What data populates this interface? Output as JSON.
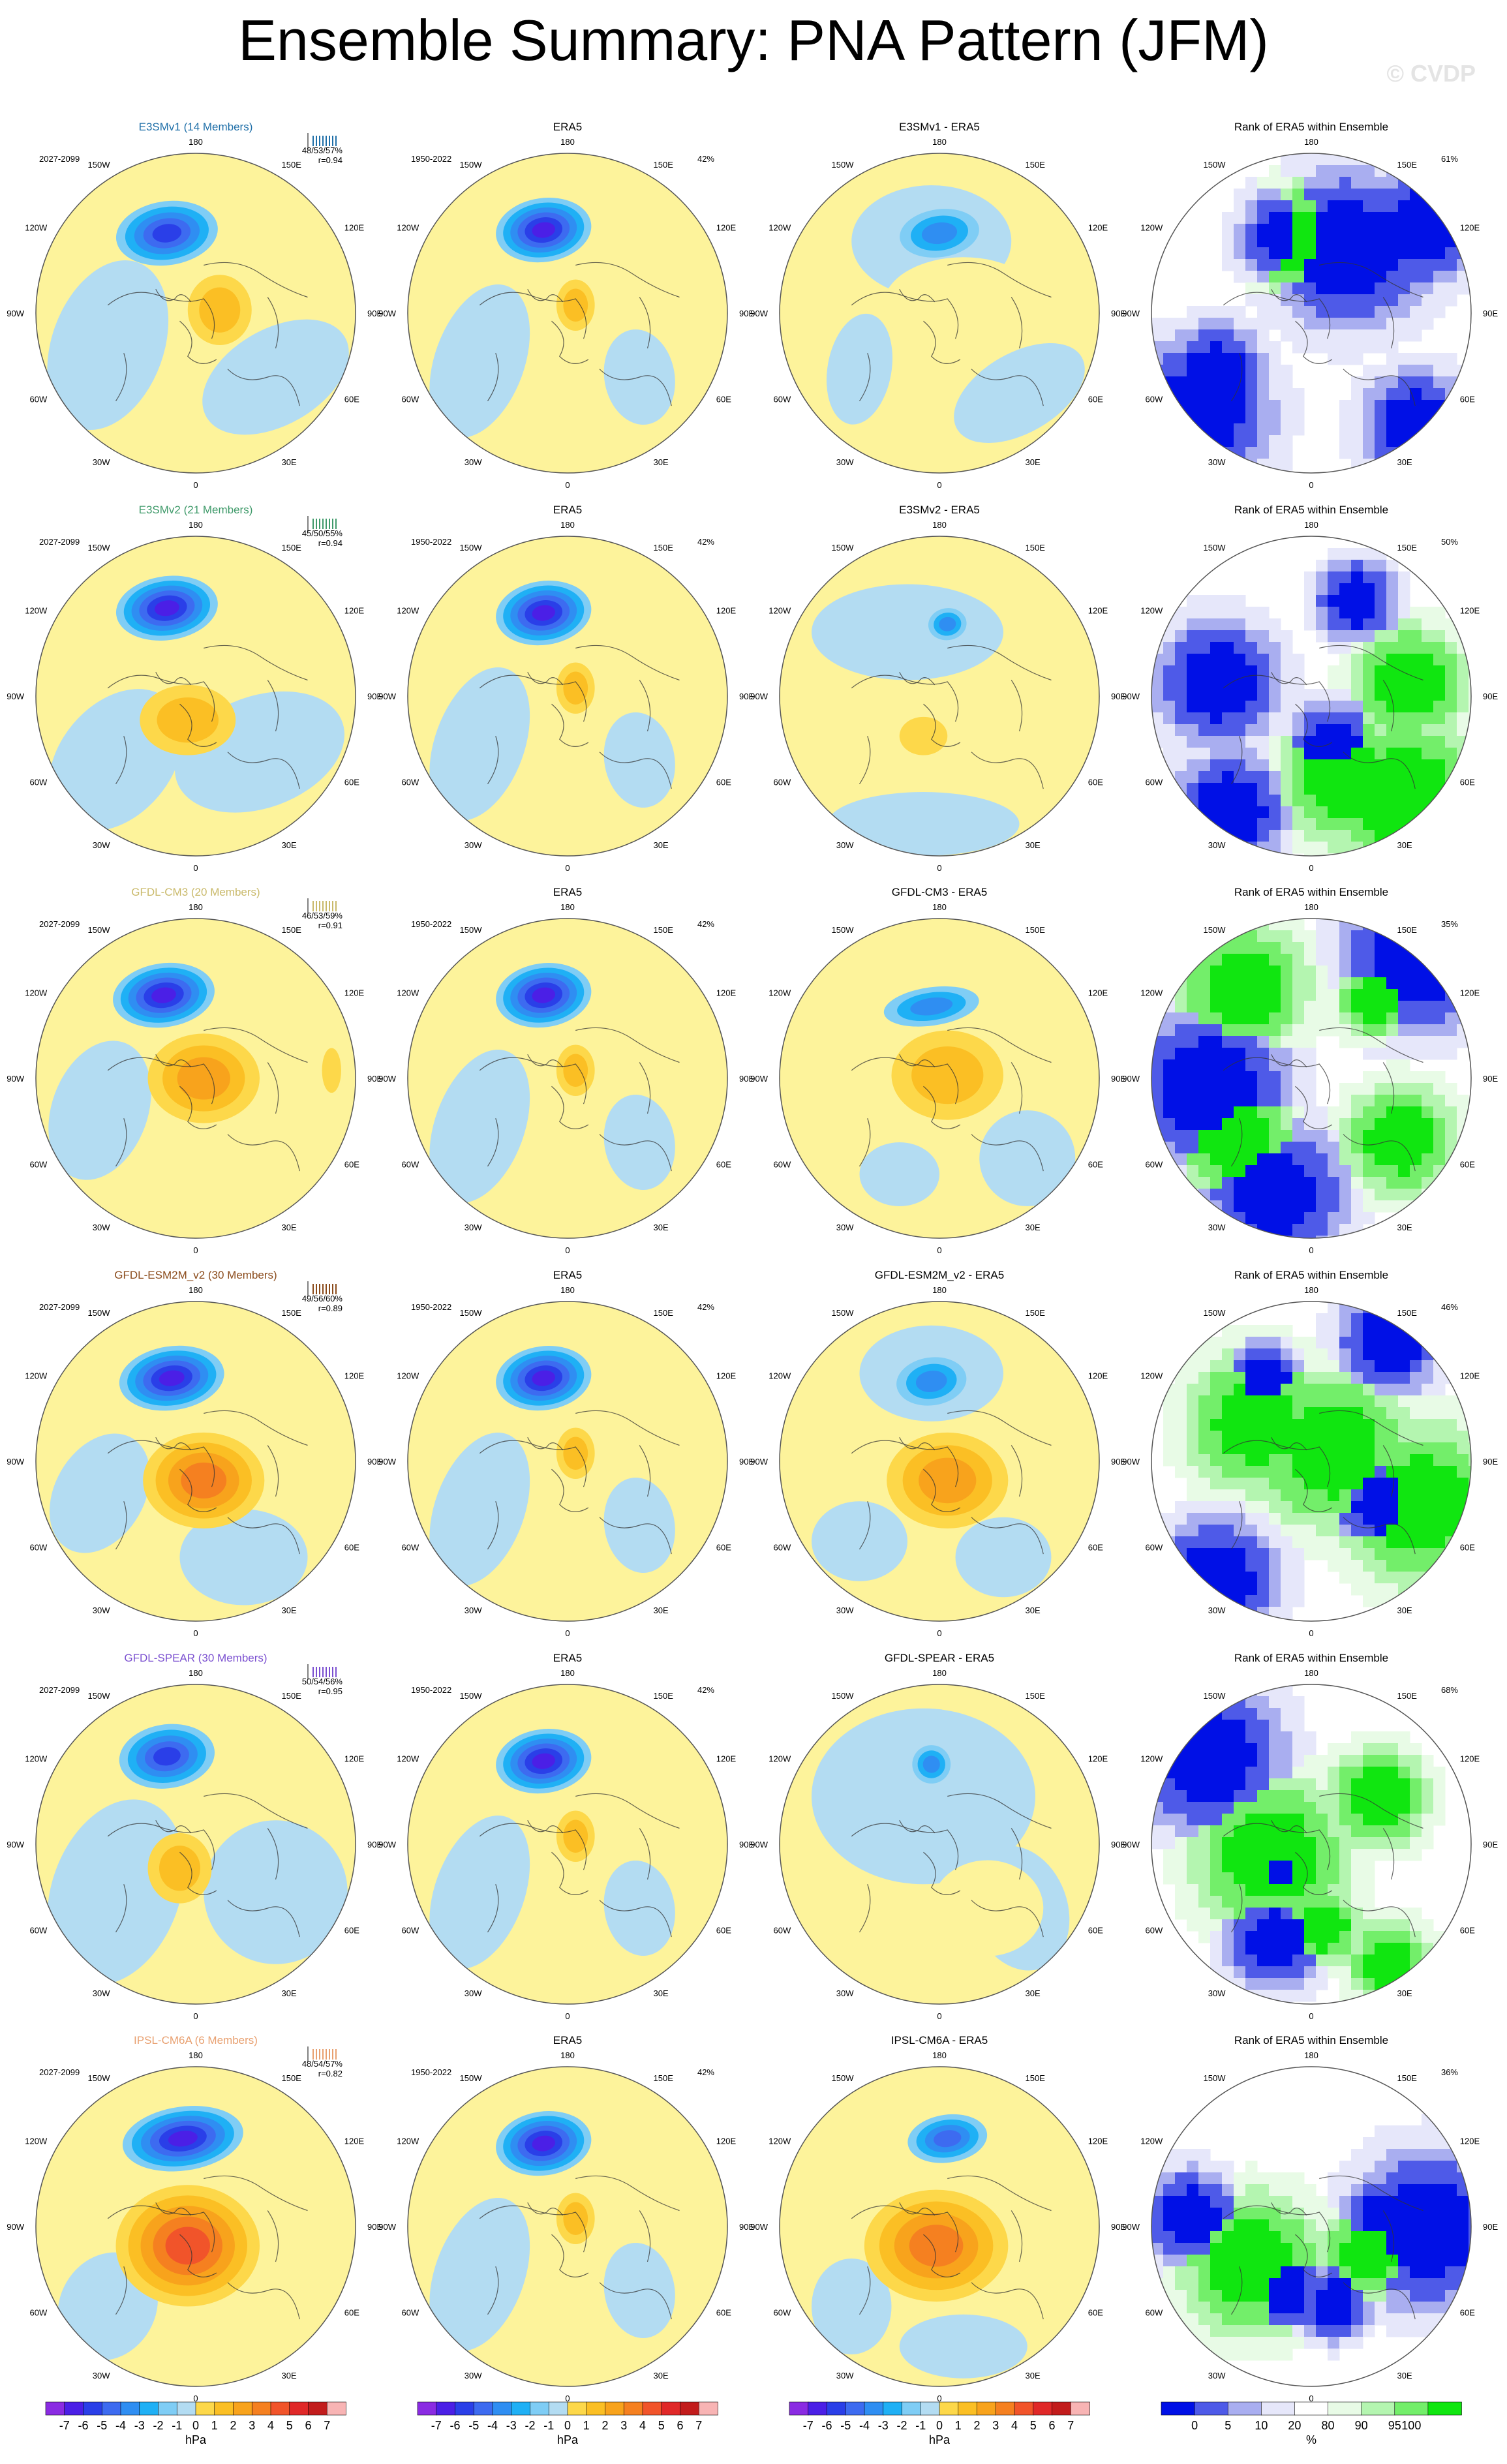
{
  "title": "Ensemble Summary: PNA Pattern (JFM)",
  "watermark": "© CVDP",
  "colors": {
    "yellow": "#fdf39b",
    "lightblue": "#b3dcf2",
    "neg": [
      "#8a2be2",
      "#4b1fe6",
      "#2a3fe8",
      "#3d6bf0",
      "#2f8ef2",
      "#1fb0f5",
      "#7fcdf5",
      "#b3dcf2"
    ],
    "pos": [
      "#fdf39b",
      "#fdd84a",
      "#fbbf24",
      "#f8a31c",
      "#f58020",
      "#f1542a",
      "#e02828",
      "#c21c1c",
      "#f8b4b4"
    ],
    "rank": [
      "#0010e6",
      "#4e5ae8",
      "#a9aef0",
      "#e6e7fa",
      "#ffffff",
      "#e8fbe6",
      "#b4f5b0",
      "#73ee6a",
      "#10e610"
    ]
  },
  "col_headers": {
    "era5": "ERA5",
    "rank": "Rank of ERA5 within Ensemble"
  },
  "era5_years": "1950-2022",
  "era5_pct": "42%",
  "lon_labels": [
    "180",
    "150E",
    "120E",
    "90E",
    "60E",
    "30E",
    "0",
    "30W",
    "60W",
    "90W",
    "120W",
    "150W"
  ],
  "rows": [
    {
      "model": "E3SMv1 (14 Members)",
      "model_color": "#1f6fa8",
      "years": "2027-2099",
      "stats": "48/53/57%",
      "r": "r=0.94",
      "diff_title": "E3SMv1 - ERA5",
      "rank_pct": "61%"
    },
    {
      "model": "E3SMv2 (21 Members)",
      "model_color": "#3f9a6a",
      "years": "2027-2099",
      "stats": "45/50/55%",
      "r": "r=0.94",
      "diff_title": "E3SMv2 - ERA5",
      "rank_pct": "50%"
    },
    {
      "model": "GFDL-CM3 (20 Members)",
      "model_color": "#c9b96a",
      "years": "2027-2099",
      "stats": "46/53/59%",
      "r": "r=0.91",
      "diff_title": "GFDL-CM3 - ERA5",
      "rank_pct": "35%"
    },
    {
      "model": "GFDL-ESM2M_v2 (30 Members)",
      "model_color": "#8a4a1a",
      "years": "2027-2099",
      "stats": "49/56/60%",
      "r": "r=0.89",
      "diff_title": "GFDL-ESM2M_v2 - ERA5",
      "rank_pct": "46%"
    },
    {
      "model": "GFDL-SPEAR (30 Members)",
      "model_color": "#7a4fd0",
      "years": "2027-2099",
      "stats": "50/54/56%",
      "r": "r=0.95",
      "diff_title": "GFDL-SPEAR - ERA5",
      "rank_pct": "68%"
    },
    {
      "model": "IPSL-CM6A (6 Members)",
      "model_color": "#e8a070",
      "years": "2027-2099",
      "stats": "48/54/57%",
      "r": "r=0.82",
      "diff_title": "IPSL-CM6A - ERA5",
      "rank_pct": "36%"
    }
  ],
  "colorbar": {
    "labels": [
      "-7",
      "-6",
      "-5",
      "-4",
      "-3",
      "-2",
      "-1",
      "0",
      "1",
      "2",
      "3",
      "4",
      "5",
      "6",
      "7"
    ],
    "unit": "hPa"
  },
  "rank_colorbar": {
    "labels": [
      "0",
      "5",
      "10",
      "20",
      "80",
      "90",
      "95",
      "100"
    ],
    "unit": "%"
  },
  "chart_data": {
    "type": "heatmap",
    "title": "Ensemble Summary: PNA Pattern (JFM)",
    "projection": "north polar stereographic",
    "variable_unit": "hPa",
    "contour_levels": [
      -7,
      -6,
      -5,
      -4,
      -3,
      -2,
      -1,
      0,
      1,
      2,
      3,
      4,
      5,
      6,
      7
    ],
    "rank_levels": [
      0,
      5,
      10,
      20,
      80,
      90,
      95,
      100
    ],
    "panels": [
      {
        "row": "E3SMv1 (14 Members)",
        "ensemble_pct": [
          48,
          53,
          57
        ],
        "pattern_corr": 0.94,
        "rank_pct": 61
      },
      {
        "row": "E3SMv2 (21 Members)",
        "ensemble_pct": [
          45,
          50,
          55
        ],
        "pattern_corr": 0.94,
        "rank_pct": 50
      },
      {
        "row": "GFDL-CM3 (20 Members)",
        "ensemble_pct": [
          46,
          53,
          59
        ],
        "pattern_corr": 0.91,
        "rank_pct": 35
      },
      {
        "row": "GFDL-ESM2M_v2 (30 Members)",
        "ensemble_pct": [
          49,
          56,
          60
        ],
        "pattern_corr": 0.89,
        "rank_pct": 46
      },
      {
        "row": "GFDL-SPEAR (30 Members)",
        "ensemble_pct": [
          50,
          54,
          56
        ],
        "pattern_corr": 0.95,
        "rank_pct": 68
      },
      {
        "row": "IPSL-CM6A (6 Members)",
        "ensemble_pct": [
          48,
          54,
          57
        ],
        "pattern_corr": 0.82,
        "rank_pct": 36
      }
    ],
    "era5_pct": 42
  }
}
